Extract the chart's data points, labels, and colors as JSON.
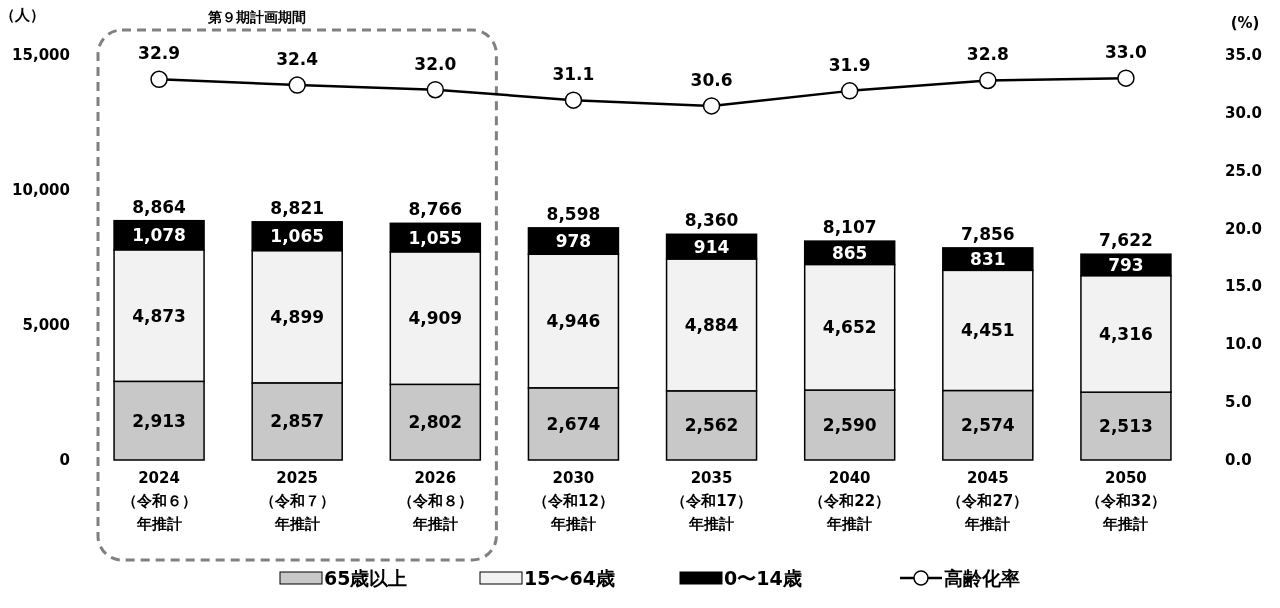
{
  "chart_data": {
    "type": "bar",
    "stacked": true,
    "categories": [
      "2024\n（令和６）年推計",
      "2025\n（令和７）年推計",
      "2026\n（令和８）年推計",
      "2030\n（令和12）年推計",
      "2035\n（令和17）年推計",
      "2040\n（令和22）年推計",
      "2045\n（令和27）年推計",
      "2050\n（令和32）年推計"
    ],
    "series": [
      {
        "name": "65歳以上",
        "color": "#c8c8c8",
        "values": [
          2913,
          2857,
          2802,
          2674,
          2562,
          2590,
          2574,
          2513
        ],
        "value_labels": [
          "2,913",
          "2,857",
          "2,802",
          "2,674",
          "2,562",
          "2,590",
          "2,574",
          "2,513"
        ]
      },
      {
        "name": "15〜64歳",
        "color": "#f2f2f2",
        "values": [
          4873,
          4899,
          4909,
          4946,
          4884,
          4652,
          4451,
          4316
        ],
        "value_labels": [
          "4,873",
          "4,899",
          "4,909",
          "4,946",
          "4,884",
          "4,652",
          "4,451",
          "4,316"
        ]
      },
      {
        "name": "0〜14歳",
        "color": "#000000",
        "values": [
          1078,
          1065,
          1055,
          978,
          914,
          865,
          831,
          793
        ],
        "value_labels": [
          "1,078",
          "1,065",
          "1,055",
          "978",
          "914",
          "865",
          "831",
          "793"
        ]
      },
      {
        "name": "高齢化率",
        "type": "line",
        "axis": "y2",
        "color": "#000000",
        "values": [
          32.9,
          32.4,
          32.0,
          31.1,
          30.6,
          31.9,
          32.8,
          33.0
        ],
        "value_labels": [
          "32.9",
          "32.4",
          "32.0",
          "31.1",
          "30.6",
          "31.9",
          "32.8",
          "33.0"
        ]
      }
    ],
    "totals": [
      "8,864",
      "8,821",
      "8,766",
      "8,598",
      "8,360",
      "8,107",
      "7,856",
      "7,622"
    ],
    "ylim": [
      0,
      15000
    ],
    "yticks": [
      0,
      {
        "value": 5000,
        "label": "5,000"
      },
      {
        "value": 10000,
        "label": "10,000"
      },
      {
        "value": 15000,
        "label": "15,000"
      }
    ],
    "y2lim": [
      0,
      35
    ],
    "y2ticks": [
      {
        "value": 0,
        "label": "0.0"
      },
      {
        "value": 5,
        "label": "5.0"
      },
      {
        "value": 10,
        "label": "10.0"
      },
      {
        "value": 15,
        "label": "15.0"
      },
      {
        "value": 20,
        "label": "20.0"
      },
      {
        "value": 25,
        "label": "25.0"
      },
      {
        "value": 30,
        "label": "30.0"
      },
      {
        "value": 35,
        "label": "35.0"
      }
    ],
    "ylabel": "（人）",
    "y2label": "(%)",
    "marker": "circle",
    "legend": "bottom",
    "grid": false,
    "annotations": [
      "第９期計画期間"
    ]
  }
}
